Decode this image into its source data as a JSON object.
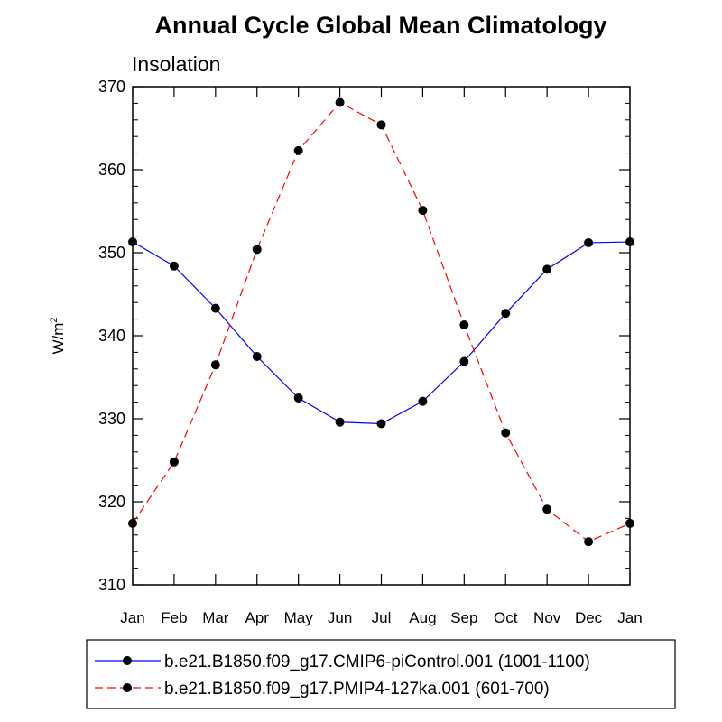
{
  "chart_data": {
    "type": "line",
    "title": "Annual Cycle Global Mean Climatology",
    "subtitle": "Insolation",
    "ylabel_base": "W/m",
    "ylabel_sup": "2",
    "ylim": [
      310,
      370
    ],
    "yticks": [
      310,
      320,
      330,
      340,
      350,
      360,
      370
    ],
    "categories": [
      "Jan",
      "Feb",
      "Mar",
      "Apr",
      "May",
      "Jun",
      "Jul",
      "Aug",
      "Sep",
      "Oct",
      "Nov",
      "Dec",
      "Jan"
    ],
    "series": [
      {
        "name": "b.e21.B1850.f09_g17.CMIP6-piControl.001 (1001-1100)",
        "color": "#0000ff",
        "dash": "solid",
        "values": [
          351.3,
          348.4,
          343.3,
          337.5,
          332.5,
          329.6,
          329.4,
          332.1,
          336.9,
          342.7,
          348.0,
          351.2,
          351.3
        ]
      },
      {
        "name": "b.e21.B1850.f09_g17.PMIP4-127ka.001 (601-700)",
        "color": "#ff0000",
        "dash": "dashed",
        "values": [
          317.4,
          324.8,
          336.5,
          350.4,
          362.3,
          368.1,
          365.4,
          355.1,
          341.3,
          328.3,
          319.1,
          315.2,
          317.4
        ]
      }
    ],
    "grid": false,
    "legend_position": "bottom"
  }
}
